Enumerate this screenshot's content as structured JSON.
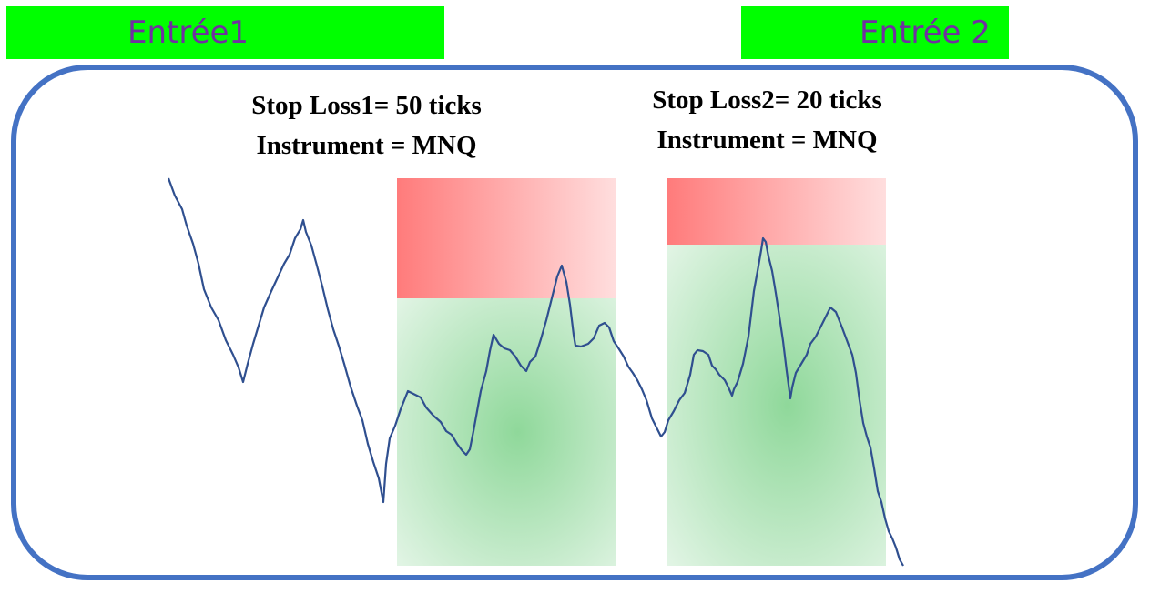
{
  "entries": {
    "entry1_label": "Entrée1",
    "entry2_label": "Entrée 2"
  },
  "trade1": {
    "stop_loss_text": "Stop Loss1= 50 ticks",
    "instrument_text": "Instrument = MNQ"
  },
  "trade2": {
    "stop_loss_text": "Stop Loss2= 20 ticks",
    "instrument_text": "Instrument = MNQ"
  },
  "colors": {
    "entry_bar": "#00ff00",
    "entry_text": "#7030a0",
    "frame": "#4472c4",
    "price_line": "#2f4f8f",
    "stop_zone": "#ff7b7b",
    "profit_zone": "#8fd89a"
  }
}
